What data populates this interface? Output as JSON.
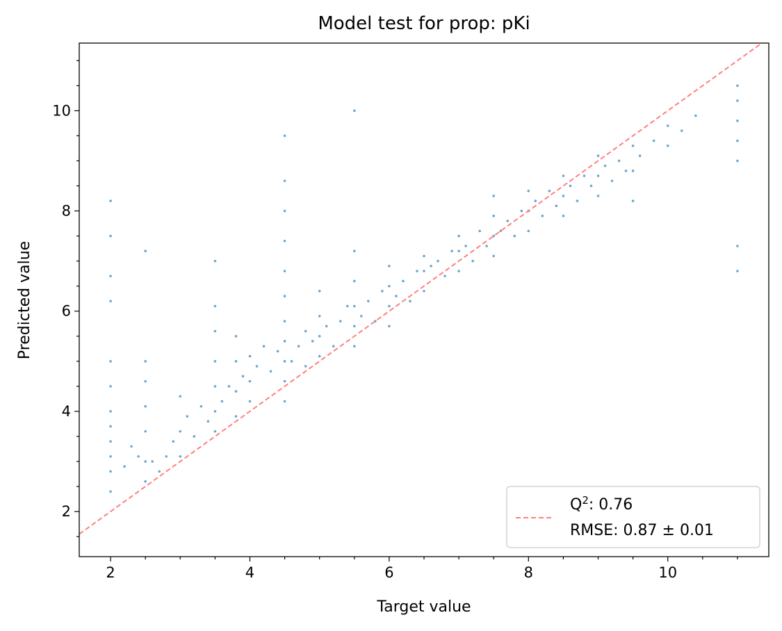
{
  "chart_data": {
    "type": "scatter",
    "title": "Model test for prop: pKi",
    "xlabel": "Target value",
    "ylabel": "Predicted value",
    "xlim": [
      1.55,
      11.45
    ],
    "ylim": [
      1.1,
      11.35
    ],
    "xticks": [
      2,
      4,
      6,
      8,
      10
    ],
    "yticks": [
      2,
      4,
      6,
      8,
      10
    ],
    "xtick_labels": [
      "2",
      "4",
      "6",
      "8",
      "10"
    ],
    "ytick_labels": [
      "2",
      "4",
      "6",
      "8",
      "10"
    ],
    "grid": false,
    "legend_position": "lower-right",
    "point_color": "#1f77b4",
    "reference_line": {
      "x": [
        1.55,
        11.45
      ],
      "y": [
        1.55,
        11.45
      ],
      "color": "#ff7f7f",
      "style": "dashed"
    },
    "legend": {
      "q2_prefix": "Q",
      "q2_sup": "2",
      "q2_value": ": 0.76",
      "rmse": "RMSE: 0.87 ± 0.01"
    },
    "summary": {
      "q2": 0.76,
      "rmse": 0.87,
      "rmse_err": 0.01
    },
    "points": [
      [
        2.0,
        2.4
      ],
      [
        2.0,
        2.8
      ],
      [
        2.0,
        3.1
      ],
      [
        2.0,
        3.4
      ],
      [
        2.0,
        3.7
      ],
      [
        2.0,
        4.0
      ],
      [
        2.0,
        4.5
      ],
      [
        2.0,
        5.0
      ],
      [
        2.0,
        6.2
      ],
      [
        2.0,
        6.7
      ],
      [
        2.0,
        7.5
      ],
      [
        2.0,
        8.2
      ],
      [
        2.2,
        2.9
      ],
      [
        2.3,
        3.3
      ],
      [
        2.4,
        3.1
      ],
      [
        2.5,
        2.6
      ],
      [
        2.5,
        3.0
      ],
      [
        2.5,
        3.6
      ],
      [
        2.5,
        4.1
      ],
      [
        2.5,
        4.6
      ],
      [
        2.5,
        5.0
      ],
      [
        2.5,
        7.2
      ],
      [
        2.6,
        3.0
      ],
      [
        2.7,
        2.8
      ],
      [
        2.8,
        3.1
      ],
      [
        2.9,
        3.4
      ],
      [
        3.0,
        3.1
      ],
      [
        3.0,
        3.6
      ],
      [
        3.0,
        4.3
      ],
      [
        3.1,
        3.9
      ],
      [
        3.2,
        3.5
      ],
      [
        3.3,
        4.1
      ],
      [
        3.4,
        3.8
      ],
      [
        3.5,
        3.6
      ],
      [
        3.5,
        4.0
      ],
      [
        3.5,
        4.5
      ],
      [
        3.5,
        5.0
      ],
      [
        3.5,
        5.6
      ],
      [
        3.5,
        6.1
      ],
      [
        3.5,
        7.0
      ],
      [
        3.6,
        4.2
      ],
      [
        3.7,
        4.5
      ],
      [
        3.8,
        3.9
      ],
      [
        3.8,
        4.4
      ],
      [
        3.8,
        5.0
      ],
      [
        3.8,
        5.5
      ],
      [
        3.9,
        4.7
      ],
      [
        4.0,
        4.2
      ],
      [
        4.0,
        4.6
      ],
      [
        4.0,
        5.1
      ],
      [
        4.1,
        4.9
      ],
      [
        4.2,
        5.3
      ],
      [
        4.3,
        4.8
      ],
      [
        4.4,
        5.2
      ],
      [
        4.5,
        4.2
      ],
      [
        4.5,
        4.6
      ],
      [
        4.5,
        5.0
      ],
      [
        4.5,
        5.4
      ],
      [
        4.5,
        5.8
      ],
      [
        4.5,
        6.3
      ],
      [
        4.5,
        6.8
      ],
      [
        4.5,
        7.4
      ],
      [
        4.5,
        8.0
      ],
      [
        4.5,
        8.6
      ],
      [
        4.5,
        9.5
      ],
      [
        4.6,
        5.0
      ],
      [
        4.7,
        5.3
      ],
      [
        4.8,
        5.6
      ],
      [
        4.8,
        4.9
      ],
      [
        4.9,
        5.4
      ],
      [
        5.0,
        5.1
      ],
      [
        5.0,
        5.5
      ],
      [
        5.0,
        5.9
      ],
      [
        5.0,
        6.4
      ],
      [
        5.1,
        5.7
      ],
      [
        5.2,
        5.3
      ],
      [
        5.3,
        5.8
      ],
      [
        5.4,
        6.1
      ],
      [
        5.5,
        5.3
      ],
      [
        5.5,
        5.7
      ],
      [
        5.5,
        6.1
      ],
      [
        5.5,
        6.6
      ],
      [
        5.5,
        7.2
      ],
      [
        5.5,
        10.0
      ],
      [
        5.6,
        5.9
      ],
      [
        5.7,
        6.2
      ],
      [
        5.8,
        5.8
      ],
      [
        5.9,
        6.4
      ],
      [
        6.0,
        5.7
      ],
      [
        6.0,
        6.1
      ],
      [
        6.0,
        6.5
      ],
      [
        6.0,
        6.9
      ],
      [
        6.1,
        6.3
      ],
      [
        6.2,
        6.6
      ],
      [
        6.3,
        6.2
      ],
      [
        6.4,
        6.8
      ],
      [
        6.5,
        6.4
      ],
      [
        6.5,
        6.8
      ],
      [
        6.5,
        7.1
      ],
      [
        6.6,
        6.9
      ],
      [
        6.7,
        7.0
      ],
      [
        6.8,
        6.7
      ],
      [
        6.9,
        7.2
      ],
      [
        7.0,
        6.8
      ],
      [
        7.0,
        7.2
      ],
      [
        7.0,
        7.5
      ],
      [
        7.1,
        7.3
      ],
      [
        7.2,
        7.0
      ],
      [
        7.3,
        7.6
      ],
      [
        7.4,
        7.3
      ],
      [
        7.5,
        7.1
      ],
      [
        7.5,
        7.5
      ],
      [
        7.5,
        7.9
      ],
      [
        7.5,
        8.3
      ],
      [
        7.6,
        7.6
      ],
      [
        7.7,
        7.8
      ],
      [
        7.8,
        7.5
      ],
      [
        7.9,
        8.0
      ],
      [
        8.0,
        7.6
      ],
      [
        8.0,
        8.0
      ],
      [
        8.0,
        8.4
      ],
      [
        8.1,
        8.2
      ],
      [
        8.2,
        7.9
      ],
      [
        8.3,
        8.4
      ],
      [
        8.4,
        8.1
      ],
      [
        8.5,
        7.9
      ],
      [
        8.5,
        8.3
      ],
      [
        8.5,
        8.7
      ],
      [
        8.6,
        8.5
      ],
      [
        8.7,
        8.2
      ],
      [
        8.8,
        8.7
      ],
      [
        8.9,
        8.5
      ],
      [
        9.0,
        8.3
      ],
      [
        9.0,
        8.7
      ],
      [
        9.0,
        9.1
      ],
      [
        9.1,
        8.9
      ],
      [
        9.2,
        8.6
      ],
      [
        9.3,
        9.0
      ],
      [
        9.4,
        8.8
      ],
      [
        9.5,
        8.2
      ],
      [
        9.5,
        8.8
      ],
      [
        9.5,
        9.3
      ],
      [
        9.6,
        9.1
      ],
      [
        9.8,
        9.4
      ],
      [
        10.0,
        9.3
      ],
      [
        10.0,
        9.7
      ],
      [
        10.2,
        9.6
      ],
      [
        10.4,
        9.9
      ],
      [
        11.0,
        9.0
      ],
      [
        11.0,
        9.4
      ],
      [
        11.0,
        9.8
      ],
      [
        11.0,
        10.2
      ],
      [
        11.0,
        10.5
      ],
      [
        11.0,
        7.3
      ],
      [
        11.0,
        6.8
      ]
    ]
  }
}
